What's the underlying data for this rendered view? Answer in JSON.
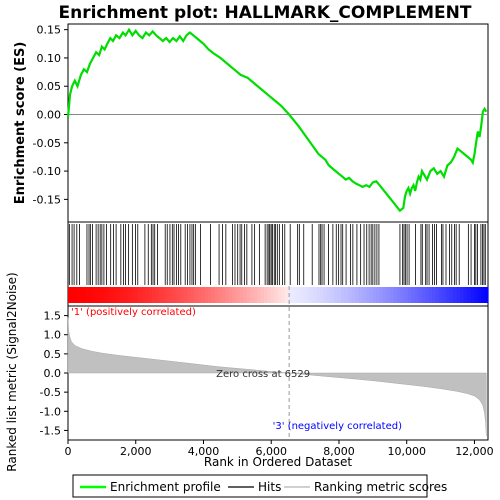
{
  "chart_data": {
    "type": "line",
    "title": "Enrichment plot: HALLMARK_COMPLEMENT",
    "xlabel": "Rank in Ordered Dataset",
    "top_panel": {
      "ylabel": "Enrichment score (ES)",
      "ylim": [
        -0.19,
        0.16
      ],
      "yticks": [
        -0.15,
        -0.1,
        -0.05,
        0.0,
        0.05,
        0.1,
        0.15
      ],
      "ytick_labels": [
        "-0.15",
        "-0.10",
        "-0.05",
        "0.00",
        "0.05",
        "0.10",
        "0.15"
      ],
      "line_color": "#00dd00",
      "series": [
        {
          "name": "Enrichment profile",
          "x": [
            0,
            60,
            120,
            200,
            280,
            380,
            470,
            560,
            650,
            740,
            830,
            920,
            1000,
            1080,
            1160,
            1250,
            1330,
            1420,
            1520,
            1620,
            1700,
            1800,
            1900,
            2000,
            2100,
            2200,
            2300,
            2400,
            2500,
            2600,
            2700,
            2800,
            2900,
            3000,
            3100,
            3200,
            3300,
            3400,
            3500,
            3600,
            3700,
            3800,
            3900,
            4000,
            4150,
            4300,
            4500,
            4700,
            4900,
            5100,
            5300,
            5500,
            5700,
            5900,
            6100,
            6300,
            6529,
            6800,
            7100,
            7400,
            7600,
            7700,
            7900,
            8100,
            8200,
            8300,
            8400,
            8500,
            8600,
            8700,
            8800,
            8900,
            9000,
            9100,
            9200,
            9400,
            9600,
            9800,
            9900,
            9950,
            10000,
            10050,
            10100,
            10150,
            10200,
            10250,
            10300,
            10350,
            10400,
            10450,
            10500,
            10600,
            10700,
            10800,
            10900,
            11000,
            11100,
            11200,
            11300,
            11400,
            11500,
            11600,
            11700,
            11800,
            11900,
            11950,
            12000,
            12050,
            12100,
            12150,
            12200,
            12250,
            12300,
            12350
          ],
          "y": [
            -0.005,
            0.035,
            0.05,
            0.06,
            0.05,
            0.07,
            0.08,
            0.075,
            0.09,
            0.1,
            0.11,
            0.105,
            0.12,
            0.115,
            0.125,
            0.135,
            0.13,
            0.14,
            0.135,
            0.145,
            0.14,
            0.15,
            0.14,
            0.148,
            0.14,
            0.135,
            0.145,
            0.14,
            0.147,
            0.14,
            0.135,
            0.13,
            0.135,
            0.128,
            0.135,
            0.13,
            0.138,
            0.13,
            0.14,
            0.145,
            0.14,
            0.135,
            0.13,
            0.125,
            0.115,
            0.108,
            0.1,
            0.09,
            0.08,
            0.07,
            0.065,
            0.055,
            0.045,
            0.035,
            0.025,
            0.015,
            0.0,
            -0.02,
            -0.045,
            -0.07,
            -0.08,
            -0.09,
            -0.1,
            -0.11,
            -0.115,
            -0.112,
            -0.118,
            -0.122,
            -0.125,
            -0.128,
            -0.125,
            -0.128,
            -0.12,
            -0.118,
            -0.125,
            -0.14,
            -0.155,
            -0.17,
            -0.165,
            -0.145,
            -0.135,
            -0.13,
            -0.14,
            -0.13,
            -0.125,
            -0.135,
            -0.12,
            -0.11,
            -0.115,
            -0.1,
            -0.105,
            -0.115,
            -0.1,
            -0.095,
            -0.105,
            -0.1,
            -0.11,
            -0.09,
            -0.085,
            -0.075,
            -0.06,
            -0.065,
            -0.07,
            -0.075,
            -0.08,
            -0.085,
            -0.07,
            -0.05,
            -0.03,
            -0.04,
            -0.02,
            0.005,
            0.01,
            0.005
          ]
        }
      ]
    },
    "hits_panel": {
      "legend_label": "Hits",
      "hit_ranks": [
        40,
        120,
        180,
        260,
        340,
        560,
        620,
        660,
        720,
        830,
        890,
        950,
        1000,
        1060,
        1140,
        1260,
        1340,
        1420,
        1560,
        1640,
        1700,
        1790,
        1900,
        1990,
        2060,
        2270,
        2370,
        2460,
        2510,
        2560,
        2640,
        2870,
        2930,
        3010,
        3080,
        3130,
        3200,
        3260,
        3330,
        3460,
        3530,
        3600,
        3660,
        3710,
        3760,
        3910,
        4210,
        4460,
        4560,
        4660,
        4860,
        4930,
        5010,
        5080,
        5130,
        5210,
        5280,
        5430,
        5510,
        5650,
        5820,
        5880,
        5930,
        5960,
        6000,
        6040,
        6090,
        6130,
        6180,
        6240,
        6330,
        6400,
        6560,
        6780,
        6830,
        6960,
        7210,
        7410,
        7460,
        7500,
        7560,
        7690,
        7820,
        7920,
        7990,
        8060,
        8110,
        8210,
        8340,
        8410,
        8530,
        8640,
        8740,
        8820,
        8890,
        8950,
        9000,
        9060,
        9120,
        9180,
        9800,
        9880,
        9920,
        9960,
        10010,
        10070,
        10260,
        10420,
        10460,
        10560,
        10600,
        10660,
        10760,
        10820,
        10880,
        11030,
        11070,
        11160,
        11260,
        11330,
        11410,
        11460,
        11550,
        11820,
        11900,
        12000,
        12040,
        12090,
        12190,
        12240,
        12280,
        12320
      ]
    },
    "metric_panel": {
      "ylabel": "Ranked list metric (Signal2Noise)",
      "ylim": [
        -1.75,
        1.75
      ],
      "yticks": [
        -1.5,
        -1.0,
        -0.5,
        0.0,
        0.5,
        1.0,
        1.5
      ],
      "ytick_labels": [
        "-1.5",
        "-1.0",
        "-0.5",
        "0.0",
        "0.5",
        "1.0",
        "1.5"
      ],
      "fill_color": "#c0c0c0",
      "curve_x": [
        0,
        20,
        50,
        100,
        200,
        400,
        700,
        1000,
        1500,
        2000,
        2500,
        3000,
        3500,
        4000,
        4500,
        5000,
        5500,
        6000,
        6529,
        7000,
        7500,
        8000,
        8500,
        9000,
        9500,
        10000,
        10500,
        11000,
        11500,
        11800,
        12000,
        12150,
        12250,
        12300,
        12330,
        12350
      ],
      "curve_y": [
        1.45,
        1.1,
        0.95,
        0.82,
        0.72,
        0.64,
        0.57,
        0.52,
        0.46,
        0.41,
        0.36,
        0.31,
        0.26,
        0.21,
        0.16,
        0.12,
        0.08,
        0.04,
        0.0,
        -0.04,
        -0.08,
        -0.12,
        -0.16,
        -0.2,
        -0.25,
        -0.3,
        -0.35,
        -0.41,
        -0.48,
        -0.54,
        -0.6,
        -0.7,
        -0.85,
        -1.05,
        -1.3,
        -1.65
      ],
      "zero_cross_label": "Zero cross at 6529",
      "zero_cross": 6529,
      "pos_label": "'1' (positively correlated)",
      "neg_label": "'3' (negatively correlated)"
    },
    "xaxis": {
      "xlim": [
        0,
        12400
      ],
      "xticks": [
        0,
        2000,
        4000,
        6000,
        8000,
        10000,
        12000
      ],
      "xtick_labels": [
        "0",
        "2,000",
        "4,000",
        "6,000",
        "8,000",
        "10,000",
        "12,000"
      ]
    },
    "legend": {
      "entries": [
        {
          "label": "Enrichment profile",
          "color": "#00ff00"
        },
        {
          "label": "Hits",
          "color": "#000000"
        },
        {
          "label": "Ranking metric scores",
          "color": "#c0c0c0"
        }
      ]
    }
  }
}
